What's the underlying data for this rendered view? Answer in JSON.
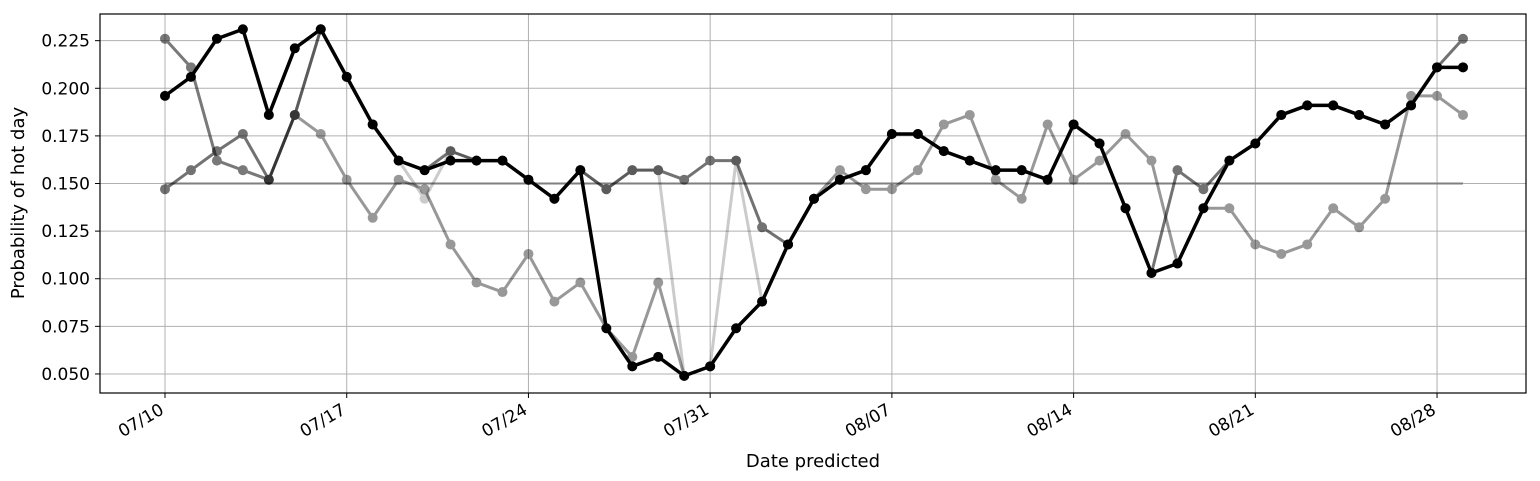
{
  "chart_data": {
    "type": "line",
    "xlabel": "Date predicted",
    "ylabel": "Probability of hot day",
    "x_start": "07/10",
    "x_end": "08/29",
    "x_ticks": [
      "07/10",
      "07/17",
      "07/24",
      "07/31",
      "08/07",
      "08/14",
      "08/21",
      "08/28"
    ],
    "y_ticks": [
      "0.050",
      "0.075",
      "0.100",
      "0.125",
      "0.150",
      "0.175",
      "0.200",
      "0.225"
    ],
    "ylim": [
      0.04,
      0.239
    ],
    "grid": true,
    "baseline": {
      "value": 0.15,
      "color": "#7f7f7f"
    },
    "series": [
      {
        "color": "#000000",
        "opacity": 0.2,
        "values": [
          0.226,
          0.211,
          0.162,
          0.157,
          0.152,
          0.186,
          0.231,
          0.206,
          0.181,
          0.162,
          0.142,
          0.167,
          0.162,
          0.162,
          0.152,
          0.142,
          0.157,
          0.147,
          0.157,
          0.157,
          0.049,
          0.054,
          0.162,
          0.088,
          0.118,
          0.142,
          0.152,
          0.157,
          0.176,
          0.176,
          0.167,
          0.162,
          0.157,
          0.157,
          0.152,
          0.181,
          0.171,
          0.137,
          0.103,
          0.108,
          0.137,
          0.162,
          0.171,
          0.186,
          0.191,
          0.191,
          0.186,
          0.181,
          0.191,
          0.211,
          0.211
        ]
      },
      {
        "color": "#000000",
        "opacity": 0.4,
        "values": [
          0.226,
          0.211,
          0.162,
          0.157,
          0.152,
          0.186,
          0.176,
          0.152,
          0.132,
          0.152,
          0.147,
          0.118,
          0.098,
          0.093,
          0.113,
          0.088,
          0.098,
          0.074,
          0.059,
          0.098,
          0.049,
          0.054,
          0.074,
          0.088,
          0.118,
          0.142,
          0.157,
          0.147,
          0.147,
          0.157,
          0.181,
          0.186,
          0.152,
          0.142,
          0.181,
          0.152,
          0.162,
          0.176,
          0.162,
          0.108,
          0.137,
          0.137,
          0.118,
          0.113,
          0.118,
          0.137,
          0.127,
          0.142,
          0.196,
          0.196,
          0.186
        ]
      },
      {
        "color": "#000000",
        "opacity": 0.55,
        "values": [
          0.147,
          0.157,
          0.167,
          0.176,
          0.152,
          0.186,
          0.231,
          0.206,
          0.181,
          0.162,
          0.157,
          0.167,
          0.162,
          0.162,
          0.152,
          0.142,
          0.157,
          0.147,
          0.157,
          0.157,
          0.152,
          0.162,
          0.162,
          0.127,
          0.118,
          0.142,
          0.152,
          0.157,
          0.176,
          0.176,
          0.167,
          0.162,
          0.157,
          0.157,
          0.152,
          0.181,
          0.171,
          0.137,
          0.103,
          0.157,
          0.147,
          0.162,
          0.171,
          0.186,
          0.191,
          0.191,
          0.186,
          0.181,
          0.191,
          0.211,
          0.226
        ]
      },
      {
        "color": "#000000",
        "opacity": 1.0,
        "values": [
          0.196,
          0.206,
          0.226,
          0.231,
          0.186,
          0.221,
          0.231,
          0.206,
          0.181,
          0.162,
          0.157,
          0.162,
          0.162,
          0.162,
          0.152,
          0.142,
          0.157,
          0.074,
          0.054,
          0.059,
          0.049,
          0.054,
          0.074,
          0.088,
          0.118,
          0.142,
          0.152,
          0.157,
          0.176,
          0.176,
          0.167,
          0.162,
          0.157,
          0.157,
          0.152,
          0.181,
          0.171,
          0.137,
          0.103,
          0.108,
          0.137,
          0.162,
          0.171,
          0.186,
          0.191,
          0.191,
          0.186,
          0.181,
          0.191,
          0.211,
          0.211
        ]
      }
    ]
  }
}
